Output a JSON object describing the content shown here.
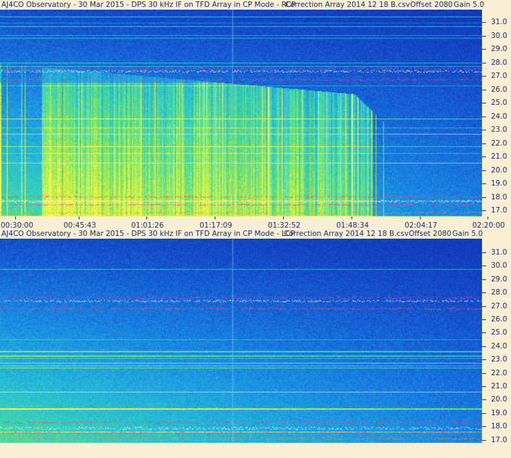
{
  "panels": [
    {
      "title": {
        "observatory": "AJ4CO Observatory - 30 Mar 2015 - DPS 30 kHz IF on TFD Array in CP Mode - RCP",
        "correction": "Correction Array 2014 12 18 B.csv",
        "offset": "Offset 2080",
        "gain": "Gain 5.0"
      },
      "polarization": "RCP"
    },
    {
      "title": {
        "observatory": "AJ4CO Observatory - 30 Mar 2015 - DPS 30 kHz IF on TFD Array in CP Mode - LCP",
        "correction": "Correction Array 2014 12 18 B.csv",
        "offset": "Offset 2080",
        "gain": "Gain 5.0"
      },
      "polarization": "LCP"
    }
  ],
  "chart_data": [
    {
      "type": "heatmap",
      "title": "AJ4CO Observatory - 30 Mar 2015 - DPS 30 kHz IF on TFD Array in CP Mode - RCP",
      "x_ticks": [
        "00:30:00",
        "00:45:43",
        "01:01:26",
        "01:17:09",
        "01:32:52",
        "01:48:34",
        "02:04:17",
        "02:20:00"
      ],
      "y_ticks": [
        "31.0",
        "30.0",
        "29.0",
        "28.0",
        "27.0",
        "26.0",
        "25.0",
        "24.0",
        "23.0",
        "22.0",
        "21.0",
        "20.0",
        "19.0",
        "18.0",
        "17.0"
      ],
      "y_values": [
        31.0,
        30.0,
        29.0,
        28.0,
        27.0,
        26.0,
        25.0,
        24.0,
        23.0,
        22.0,
        21.0,
        20.0,
        19.0,
        18.0,
        17.0
      ]
    },
    {
      "type": "heatmap",
      "title": "AJ4CO Observatory - 30 Mar 2015 - DPS 30 kHz IF on TFD Array in CP Mode - LCP",
      "y_ticks": [
        "31.0",
        "30.0",
        "29.0",
        "28.0",
        "27.0",
        "26.0",
        "25.0",
        "24.0",
        "23.0",
        "22.0",
        "21.0",
        "20.0",
        "19.0",
        "18.0",
        "17.0"
      ],
      "y_values": [
        31.0,
        30.0,
        29.0,
        28.0,
        27.0,
        26.0,
        25.0,
        24.0,
        23.0,
        22.0,
        21.0,
        20.0,
        19.0,
        18.0,
        17.0
      ]
    }
  ]
}
